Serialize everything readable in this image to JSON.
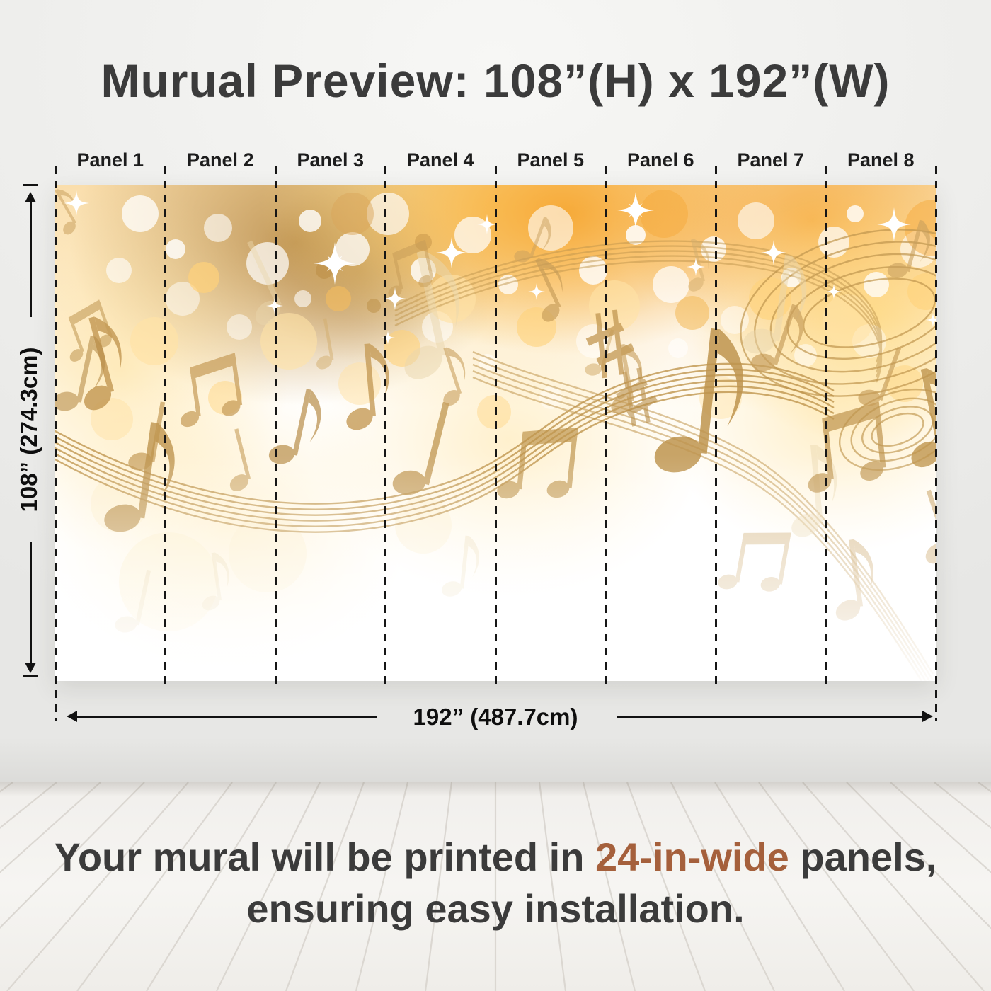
{
  "header": {
    "title": "Murual Preview: 108”(H) x 192”(W)"
  },
  "panels": {
    "count": 8,
    "labels": [
      "Panel 1",
      "Panel 2",
      "Panel 3",
      "Panel 4",
      "Panel 5",
      "Panel 6",
      "Panel 7",
      "Panel 8"
    ]
  },
  "dimensions": {
    "height": {
      "label": "108” (274.3cm)"
    },
    "width": {
      "label": "192” (487.7cm)"
    }
  },
  "caption": {
    "prefix": "Your mural will be printed in ",
    "highlight": "24-in-wide",
    "suffix": " panels, ensuring easy installation."
  },
  "colors": {
    "accent": "#a5603c",
    "text_dark": "#3b3b3b",
    "divider_dash": "#161616",
    "mural_gold": "#c0964e",
    "mural_orange_glow": "#f49a1c",
    "mural_yellow_glow": "#ffd97e"
  }
}
